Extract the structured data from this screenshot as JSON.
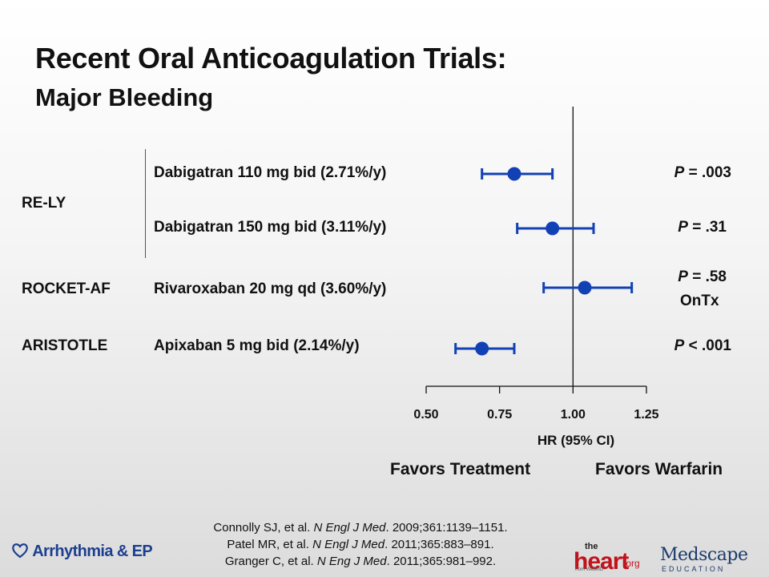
{
  "title": "Recent Oral Anticoagulation Trials:",
  "subtitle": "Major Bleeding",
  "chart_data": {
    "type": "forest",
    "xlabel": "HR (95% CI)",
    "xlim": [
      0.5,
      1.25
    ],
    "xticks": [
      "0.50",
      "0.75",
      "1.00",
      "1.25"
    ],
    "reference_line": 1.0,
    "marker_color": "#1240b5",
    "rows": [
      {
        "trial": "RE-LY",
        "treatment": "Dabigatran 110 mg  bid (2.71%/y)",
        "hr": 0.8,
        "ci_low": 0.69,
        "ci_high": 0.93,
        "p_label": "P",
        "p_value": " = .003",
        "p_note": ""
      },
      {
        "trial": "",
        "treatment": "Dabigatran 150 mg bid  (3.11%/y)",
        "hr": 0.93,
        "ci_low": 0.81,
        "ci_high": 1.07,
        "p_label": "P",
        "p_value": " = .31",
        "p_note": ""
      },
      {
        "trial": "ROCKET-AF",
        "treatment": "Rivaroxaban 20 mg qd  (3.60%/y)",
        "hr": 1.04,
        "ci_low": 0.9,
        "ci_high": 1.2,
        "p_label": "P",
        "p_value": " = .58",
        "p_note": "OnTx"
      },
      {
        "trial": "ARISTOTLE",
        "treatment": "Apixaban 5 mg bid  (2.14%/y)",
        "hr": 0.69,
        "ci_low": 0.6,
        "ci_high": 0.8,
        "p_label": "P",
        "p_value": " < .001",
        "p_note": ""
      }
    ],
    "favors_left": "Favors Treatment",
    "favors_right": "Favors Warfarin"
  },
  "citations": [
    {
      "authors": "Connolly SJ, et al. ",
      "journal": "N Engl J Med",
      "details": ". 2009;361:1139–1151."
    },
    {
      "authors": "Patel MR, et al. ",
      "journal": "N Engl J Med",
      "details": ". 2011;365:883–891."
    },
    {
      "authors": "Granger C, et al. ",
      "journal": "N Eng J Med",
      "details": ". 2011;365:981–992."
    }
  ],
  "logos": {
    "left": "Arrhythmia & EP",
    "heart_the": "the",
    "heart_main": "heart",
    "heart_org": ".org",
    "heart_from": "from WebMD",
    "medscape": "Medscape",
    "medscape_sub": "EDUCATION"
  }
}
